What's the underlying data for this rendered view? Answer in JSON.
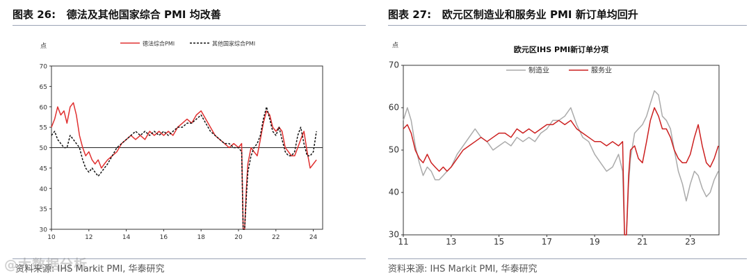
{
  "watermark": "@大数据分析",
  "chart_data": [
    {
      "figure_label": "图表 26:",
      "figure_title": "德法及其他国家综合 PMI 均改善",
      "source": "资料来源: IHS Markit PMI, 华泰研究",
      "type": "line",
      "title": "",
      "ylabel": "点",
      "xlabel": "",
      "xlim": [
        2010,
        2024.5
      ],
      "ylim": [
        30,
        70
      ],
      "x_ticks": [
        2010,
        2012,
        2014,
        2016,
        2018,
        2020,
        2022,
        2024
      ],
      "x_tick_labels": [
        "10",
        "12",
        "14",
        "16",
        "18",
        "20",
        "22",
        "24"
      ],
      "y_ticks": [
        30,
        35,
        40,
        45,
        50,
        55,
        60,
        65,
        70
      ],
      "reference_line": 50,
      "grid": false,
      "legend_position": "top",
      "series": [
        {
          "name": "德法综合PMI",
          "color": "#e03030",
          "dash": false,
          "x": [
            2010.0,
            2010.17,
            2010.33,
            2010.5,
            2010.67,
            2010.83,
            2011.0,
            2011.17,
            2011.33,
            2011.5,
            2011.67,
            2011.83,
            2012.0,
            2012.17,
            2012.33,
            2012.5,
            2012.67,
            2012.83,
            2013.0,
            2013.25,
            2013.5,
            2013.75,
            2014.0,
            2014.25,
            2014.5,
            2014.75,
            2015.0,
            2015.25,
            2015.5,
            2015.75,
            2016.0,
            2016.25,
            2016.5,
            2016.75,
            2017.0,
            2017.25,
            2017.5,
            2017.75,
            2018.0,
            2018.25,
            2018.5,
            2018.75,
            2019.0,
            2019.25,
            2019.5,
            2019.75,
            2020.0,
            2020.17,
            2020.25,
            2020.33,
            2020.42,
            2020.5,
            2020.67,
            2020.83,
            2021.0,
            2021.17,
            2021.33,
            2021.5,
            2021.67,
            2021.83,
            2022.0,
            2022.17,
            2022.33,
            2022.5,
            2022.67,
            2022.83,
            2023.0,
            2023.17,
            2023.33,
            2023.5,
            2023.67,
            2023.83,
            2024.0,
            2024.17
          ],
          "y": [
            55,
            57,
            60,
            58,
            59,
            56,
            60,
            61,
            58,
            53,
            50,
            48,
            49,
            47,
            46,
            47,
            45,
            46,
            47,
            48,
            49,
            51,
            52,
            53,
            52,
            53,
            52,
            54,
            53,
            54,
            53,
            54,
            53,
            55,
            56,
            57,
            56,
            58,
            59,
            57,
            55,
            53,
            52,
            51,
            50,
            51,
            50,
            51,
            30,
            30,
            40,
            46,
            50,
            49,
            48,
            52,
            56,
            59,
            58,
            55,
            54,
            55,
            54,
            50,
            49,
            48,
            48,
            50,
            52,
            54,
            49,
            45,
            46,
            47
          ]
        },
        {
          "name": "其他国家综合PMI",
          "color": "#111111",
          "dash": true,
          "x": [
            2010.0,
            2010.17,
            2010.33,
            2010.5,
            2010.67,
            2010.83,
            2011.0,
            2011.17,
            2011.33,
            2011.5,
            2011.67,
            2011.83,
            2012.0,
            2012.17,
            2012.33,
            2012.5,
            2012.67,
            2012.83,
            2013.0,
            2013.25,
            2013.5,
            2013.75,
            2014.0,
            2014.25,
            2014.5,
            2014.75,
            2015.0,
            2015.25,
            2015.5,
            2015.75,
            2016.0,
            2016.25,
            2016.5,
            2016.75,
            2017.0,
            2017.25,
            2017.5,
            2017.75,
            2018.0,
            2018.25,
            2018.5,
            2018.75,
            2019.0,
            2019.25,
            2019.5,
            2019.75,
            2020.0,
            2020.17,
            2020.25,
            2020.33,
            2020.42,
            2020.5,
            2020.67,
            2020.83,
            2021.0,
            2021.17,
            2021.33,
            2021.5,
            2021.67,
            2021.83,
            2022.0,
            2022.17,
            2022.33,
            2022.5,
            2022.67,
            2022.83,
            2023.0,
            2023.17,
            2023.33,
            2023.5,
            2023.67,
            2023.83,
            2024.0,
            2024.17
          ],
          "y": [
            53,
            54,
            52,
            51,
            50,
            50,
            53,
            52,
            51,
            50,
            47,
            45,
            44,
            45,
            44,
            43,
            44,
            45,
            46,
            48,
            50,
            51,
            52,
            53,
            54,
            53,
            54,
            53,
            54,
            53,
            54,
            53,
            54,
            55,
            55,
            56,
            56,
            57,
            58,
            56,
            54,
            53,
            52,
            51,
            51,
            50,
            50,
            49,
            30,
            30,
            38,
            44,
            48,
            50,
            51,
            53,
            57,
            60,
            57,
            54,
            53,
            55,
            52,
            49,
            48,
            48,
            49,
            53,
            55,
            51,
            48,
            48,
            49,
            54
          ]
        }
      ]
    },
    {
      "figure_label": "图表 27:",
      "figure_title": "欧元区制造业和服务业 PMI 新订单均回升",
      "source": "资料来源: IHS Markit PMI, 华泰研究",
      "type": "line",
      "title": "欧元区IHS PMI新订单分项",
      "ylabel": "点",
      "xlabel": "",
      "xlim": [
        2011,
        2024.2
      ],
      "ylim": [
        30,
        70
      ],
      "x_ticks": [
        2011,
        2013,
        2015,
        2017,
        2019,
        2021,
        2023
      ],
      "x_tick_labels": [
        "11",
        "13",
        "15",
        "17",
        "19",
        "21",
        "23"
      ],
      "y_ticks": [
        30,
        40,
        50,
        60,
        70
      ],
      "grid": false,
      "legend_position": "top-left",
      "series": [
        {
          "name": "制造业",
          "color": "#aaaaaa",
          "dash": false,
          "x": [
            2011.0,
            2011.17,
            2011.33,
            2011.5,
            2011.67,
            2011.83,
            2012.0,
            2012.17,
            2012.33,
            2012.5,
            2012.67,
            2012.83,
            2013.0,
            2013.25,
            2013.5,
            2013.75,
            2014.0,
            2014.25,
            2014.5,
            2014.75,
            2015.0,
            2015.25,
            2015.5,
            2015.75,
            2016.0,
            2016.25,
            2016.5,
            2016.75,
            2017.0,
            2017.25,
            2017.5,
            2017.75,
            2018.0,
            2018.25,
            2018.5,
            2018.75,
            2019.0,
            2019.25,
            2019.5,
            2019.75,
            2020.0,
            2020.17,
            2020.25,
            2020.33,
            2020.42,
            2020.5,
            2020.67,
            2020.83,
            2021.0,
            2021.17,
            2021.33,
            2021.5,
            2021.67,
            2021.83,
            2022.0,
            2022.17,
            2022.33,
            2022.5,
            2022.67,
            2022.83,
            2023.0,
            2023.17,
            2023.33,
            2023.5,
            2023.67,
            2023.83,
            2024.0,
            2024.17
          ],
          "y": [
            57,
            60,
            57,
            51,
            47,
            44,
            46,
            45,
            43,
            43,
            44,
            45,
            46,
            49,
            51,
            53,
            55,
            53,
            52,
            50,
            51,
            52,
            51,
            53,
            52,
            53,
            52,
            54,
            55,
            57,
            57,
            58,
            60,
            56,
            53,
            52,
            49,
            47,
            45,
            46,
            49,
            45,
            30,
            30,
            42,
            48,
            54,
            55,
            56,
            58,
            61,
            64,
            63,
            58,
            57,
            55,
            50,
            45,
            42,
            38,
            42,
            45,
            44,
            41,
            39,
            40,
            43,
            45
          ]
        },
        {
          "name": "服务业",
          "color": "#cc1f1f",
          "dash": false,
          "x": [
            2011.0,
            2011.17,
            2011.33,
            2011.5,
            2011.67,
            2011.83,
            2012.0,
            2012.17,
            2012.33,
            2012.5,
            2012.67,
            2012.83,
            2013.0,
            2013.25,
            2013.5,
            2013.75,
            2014.0,
            2014.25,
            2014.5,
            2014.75,
            2015.0,
            2015.25,
            2015.5,
            2015.75,
            2016.0,
            2016.25,
            2016.5,
            2016.75,
            2017.0,
            2017.25,
            2017.5,
            2017.75,
            2018.0,
            2018.25,
            2018.5,
            2018.75,
            2019.0,
            2019.25,
            2019.5,
            2019.75,
            2020.0,
            2020.17,
            2020.25,
            2020.33,
            2020.42,
            2020.5,
            2020.67,
            2020.83,
            2021.0,
            2021.17,
            2021.33,
            2021.5,
            2021.67,
            2021.83,
            2022.0,
            2022.17,
            2022.33,
            2022.5,
            2022.67,
            2022.83,
            2023.0,
            2023.17,
            2023.33,
            2023.5,
            2023.67,
            2023.83,
            2024.0,
            2024.17
          ],
          "y": [
            55,
            56,
            54,
            50,
            48,
            47,
            49,
            47,
            46,
            45,
            46,
            45,
            46,
            48,
            50,
            51,
            52,
            53,
            52,
            53,
            54,
            54,
            53,
            55,
            54,
            55,
            54,
            55,
            56,
            56,
            57,
            56,
            57,
            55,
            54,
            53,
            52,
            52,
            51,
            52,
            51,
            52,
            30,
            30,
            44,
            50,
            51,
            48,
            47,
            52,
            57,
            60,
            58,
            55,
            55,
            53,
            50,
            48,
            47,
            47,
            49,
            53,
            56,
            51,
            47,
            46,
            48,
            51
          ]
        }
      ]
    }
  ]
}
